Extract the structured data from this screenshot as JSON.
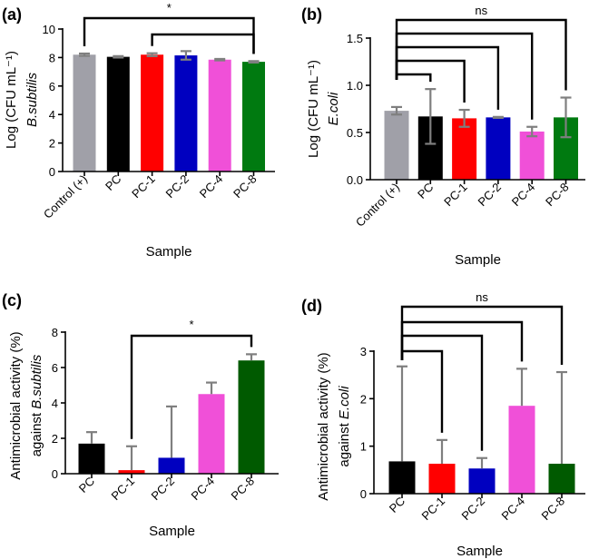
{
  "chart_data": [
    {
      "panel": "(a)",
      "type": "bar",
      "categories": [
        "Control (+)",
        "PC",
        "PC-1",
        "PC-2",
        "PC-4",
        "PC-8"
      ],
      "values": [
        8.2,
        8.05,
        8.2,
        8.15,
        7.85,
        7.7
      ],
      "errors": [
        0.08,
        0.05,
        0.1,
        0.3,
        0.05,
        0.05
      ],
      "error_style": "both",
      "colors": [
        "#a0a0a8",
        "#000000",
        "#ff0000",
        "#0000c0",
        "#f050d8",
        "#007a10"
      ],
      "xlabel": "Sample",
      "ylabel": [
        "Log (CFU mL⁻¹)",
        "",
        "B.subtilis"
      ],
      "ylim": [
        0,
        10
      ],
      "yticks": [
        0,
        2,
        4,
        6,
        8,
        10
      ],
      "ytick_labels": [
        "0",
        "2",
        "4",
        "6",
        "8",
        "10"
      ],
      "comparisons": [
        {
          "from": "Control (+)",
          "to": "PC-8",
          "label": "*"
        },
        {
          "from": "PC-1",
          "to": "PC-8",
          "label": ""
        }
      ]
    },
    {
      "panel": "(b)",
      "type": "bar",
      "categories": [
        "Control (+)",
        "PC",
        "PC-1",
        "PC-2",
        "PC-4",
        "PC-8"
      ],
      "values": [
        0.73,
        0.67,
        0.65,
        0.66,
        0.51,
        0.66
      ],
      "errors": [
        0.04,
        0.29,
        0.09,
        0.005,
        0.05,
        0.21
      ],
      "error_style": "both",
      "colors": [
        "#a0a0a8",
        "#000000",
        "#ff0000",
        "#0000c0",
        "#f050d8",
        "#007a10"
      ],
      "xlabel": "Sample",
      "ylabel": [
        "Log (CFU mL⁻¹)",
        "",
        "E.coli"
      ],
      "ylim": [
        0,
        1.5
      ],
      "yticks": [
        0,
        0.5,
        1.0,
        1.5
      ],
      "ytick_labels": [
        "0.0",
        "0.5",
        "1.0",
        "1.5"
      ],
      "comparisons": [
        {
          "from": "Control (+)",
          "to": "PC-8",
          "label": "ns"
        },
        {
          "from": "Control (+)",
          "to": "PC-4",
          "label": ""
        },
        {
          "from": "Control (+)",
          "to": "PC-2",
          "label": ""
        },
        {
          "from": "Control (+)",
          "to": "PC-1",
          "label": ""
        },
        {
          "from": "Control (+)",
          "to": "PC",
          "label": ""
        }
      ]
    },
    {
      "panel": "(c)",
      "type": "bar",
      "categories": [
        "PC",
        "PC-1",
        "PC-2",
        "PC-4",
        "PC-8"
      ],
      "values": [
        1.7,
        0.2,
        0.9,
        4.5,
        6.4
      ],
      "errors": [
        0.65,
        1.35,
        2.9,
        0.65,
        0.35
      ],
      "error_style": "up",
      "colors": [
        "#000000",
        "#ff0000",
        "#0000c0",
        "#f050d8",
        "#005a00"
      ],
      "xlabel": "Sample",
      "ylabel": [
        "Antimicrobial activity (%)",
        "against ",
        "B.subtilis"
      ],
      "ylim": [
        0,
        8
      ],
      "yticks": [
        0,
        2,
        4,
        6,
        8
      ],
      "ytick_labels": [
        "0",
        "2",
        "4",
        "6",
        "8"
      ],
      "comparisons": [
        {
          "from": "PC-1",
          "to": "PC-8",
          "label": "*"
        }
      ]
    },
    {
      "panel": "(d)",
      "type": "bar",
      "categories": [
        "PC",
        "PC-1",
        "PC-2",
        "PC-4",
        "PC-8"
      ],
      "values": [
        0.68,
        0.63,
        0.53,
        1.85,
        0.63
      ],
      "errors": [
        2.0,
        0.5,
        0.22,
        0.78,
        1.93
      ],
      "error_style": "up",
      "colors": [
        "#000000",
        "#ff0000",
        "#0000c0",
        "#f050d8",
        "#005a00"
      ],
      "xlabel": "Sample",
      "ylabel": [
        "Antimicrobial activity (%)",
        "against ",
        "E.coli"
      ],
      "ylim": [
        0,
        3
      ],
      "yticks": [
        0,
        1,
        2,
        3
      ],
      "ytick_labels": [
        "0",
        "1",
        "2",
        "3"
      ],
      "comparisons": [
        {
          "from": "PC",
          "to": "PC-8",
          "label": "ns"
        },
        {
          "from": "PC",
          "to": "PC-4",
          "label": ""
        },
        {
          "from": "PC",
          "to": "PC-2",
          "label": ""
        },
        {
          "from": "PC",
          "to": "PC-1",
          "label": ""
        }
      ]
    }
  ]
}
